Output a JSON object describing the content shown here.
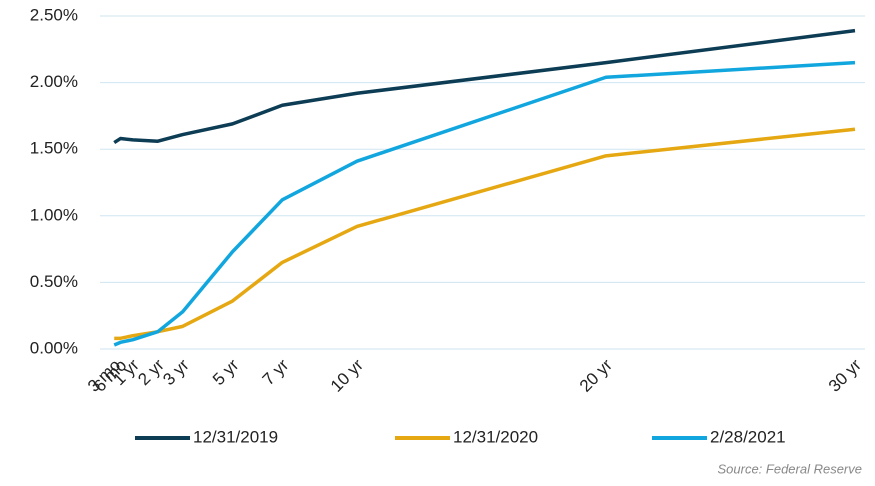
{
  "chart_data": {
    "type": "line",
    "categories": [
      "3 mo",
      "6 mo",
      "1 yr",
      "2 yr",
      "3 yr",
      "5 yr",
      "7 yr",
      "10 yr",
      "20 yr",
      "30 yr"
    ],
    "x": [
      0.25,
      0.5,
      1,
      2,
      3,
      5,
      7,
      10,
      20,
      30
    ],
    "xlim": [
      0,
      30
    ],
    "series": [
      {
        "name": "12/31/2019",
        "color": "#0d3c55",
        "values": [
          1.55,
          1.58,
          1.57,
          1.56,
          1.61,
          1.69,
          1.83,
          1.92,
          2.15,
          2.39
        ]
      },
      {
        "name": "12/31/2020",
        "color": "#e5a812",
        "values": [
          0.08,
          0.08,
          0.1,
          0.13,
          0.17,
          0.36,
          0.65,
          0.92,
          1.45,
          1.65
        ]
      },
      {
        "name": "2/28/2021",
        "color": "#12a6df",
        "values": [
          0.03,
          0.05,
          0.07,
          0.13,
          0.28,
          0.73,
          1.12,
          1.41,
          2.04,
          2.15
        ]
      }
    ],
    "ylim": [
      0,
      2.5
    ],
    "yticks": [
      {
        "value": 0,
        "label": "0.00%"
      },
      {
        "value": 0.5,
        "label": "0.50%"
      },
      {
        "value": 1,
        "label": "1.00%"
      },
      {
        "value": 1.5,
        "label": "1.50%"
      },
      {
        "value": 2,
        "label": "2.00%"
      },
      {
        "value": 2.5,
        "label": "2.50%"
      }
    ],
    "grid": true,
    "legend": "bottom",
    "source": "Source: Federal Reserve"
  }
}
